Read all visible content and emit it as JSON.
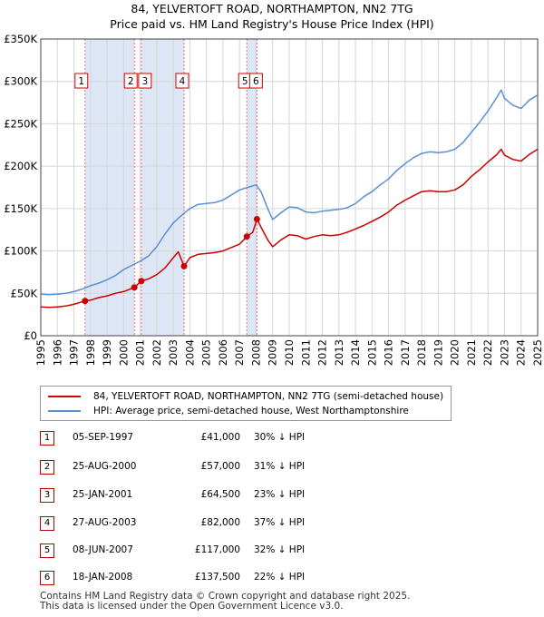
{
  "header": {
    "title": "84, YELVERTOFT ROAD, NORTHAMPTON, NN2 7TG",
    "subtitle": "Price paid vs. HM Land Registry's House Price Index (HPI)"
  },
  "legend": {
    "property_label": "84, YELVERTOFT ROAD, NORTHAMPTON, NN2 7TG (semi-detached house)",
    "hpi_label": "HPI: Average price, semi-detached house, West Northamptonshire"
  },
  "colors": {
    "property": "#cc0000",
    "hpi": "#5b8fd4",
    "shade": "#dce6f5",
    "marker_border": "#cc0000"
  },
  "chart_data": {
    "type": "line",
    "title": "84, YELVERTOFT ROAD, NORTHAMPTON, NN2 7TG",
    "xlim": [
      1995,
      2025
    ],
    "ylim": [
      0,
      350000
    ],
    "yticks": [
      0,
      50000,
      100000,
      150000,
      200000,
      250000,
      300000,
      350000
    ],
    "ytick_labels": [
      "£0",
      "£50K",
      "£100K",
      "£150K",
      "£200K",
      "£250K",
      "£300K",
      "£350K"
    ],
    "xticks": [
      1995,
      1996,
      1997,
      1998,
      1999,
      2000,
      2001,
      2002,
      2003,
      2004,
      2005,
      2006,
      2007,
      2008,
      2009,
      2010,
      2011,
      2012,
      2013,
      2014,
      2015,
      2016,
      2017,
      2018,
      2019,
      2020,
      2021,
      2022,
      2023,
      2024,
      2025
    ],
    "shaded_ranges": [
      [
        1997.68,
        2000.65
      ],
      [
        2001.07,
        2003.65
      ],
      [
        2007.44,
        2008.05
      ]
    ],
    "series": [
      {
        "name": "HPI: Average price, semi-detached house, West Northamptonshire",
        "x": [
          1995,
          1995.5,
          1996,
          1996.5,
          1997,
          1997.5,
          1998,
          1998.5,
          1999,
          1999.5,
          2000,
          2000.5,
          2001,
          2001.5,
          2002,
          2002.5,
          2003,
          2003.5,
          2004,
          2004.5,
          2005,
          2005.5,
          2006,
          2006.5,
          2007,
          2007.5,
          2008,
          2008.3,
          2008.7,
          2009,
          2009.5,
          2010,
          2010.5,
          2011,
          2011.5,
          2012,
          2012.5,
          2013,
          2013.5,
          2014,
          2014.5,
          2015,
          2015.5,
          2016,
          2016.5,
          2017,
          2017.5,
          2018,
          2018.5,
          2019,
          2019.5,
          2020,
          2020.5,
          2021,
          2021.5,
          2022,
          2022.5,
          2022.8,
          2023,
          2023.5,
          2024,
          2024.5,
          2025
        ],
        "values": [
          49000,
          48500,
          49000,
          50000,
          52000,
          55000,
          59000,
          62000,
          66000,
          71000,
          78000,
          83000,
          88000,
          94000,
          105000,
          120000,
          133000,
          142000,
          150000,
          155000,
          156000,
          157000,
          160000,
          166000,
          172000,
          175000,
          178000,
          170000,
          150000,
          137000,
          145000,
          152000,
          151000,
          146000,
          145000,
          147000,
          148000,
          149000,
          151000,
          156000,
          164000,
          170000,
          178000,
          185000,
          195000,
          203000,
          210000,
          215000,
          217000,
          216000,
          217000,
          220000,
          228000,
          240000,
          252000,
          265000,
          280000,
          290000,
          280000,
          272000,
          268000,
          278000,
          284000
        ]
      },
      {
        "name": "84, YELVERTOFT ROAD, NORTHAMPTON, NN2 7TG (semi-detached house)",
        "x": [
          1995,
          1995.5,
          1996,
          1996.5,
          1997,
          1997.67,
          1998,
          1998.5,
          1999,
          1999.5,
          2000,
          2000.65,
          2001.07,
          2001.5,
          2002,
          2002.5,
          2003,
          2003.3,
          2003.65,
          2004,
          2004.5,
          2005,
          2005.5,
          2006,
          2006.5,
          2007,
          2007.44,
          2007.8,
          2008.05,
          2008.3,
          2008.7,
          2009,
          2009.5,
          2010,
          2010.5,
          2011,
          2011.5,
          2012,
          2012.5,
          2013,
          2013.5,
          2014,
          2014.5,
          2015,
          2015.5,
          2016,
          2016.5,
          2017,
          2017.5,
          2018,
          2018.5,
          2019,
          2019.5,
          2020,
          2020.5,
          2021,
          2021.5,
          2022,
          2022.5,
          2022.8,
          2023,
          2023.5,
          2024,
          2024.5,
          2025
        ],
        "values": [
          34000,
          33500,
          34000,
          35000,
          37000,
          41000,
          42000,
          45000,
          47000,
          50000,
          52000,
          57000,
          64500,
          67000,
          72000,
          80000,
          92000,
          99000,
          82000,
          92000,
          96000,
          97000,
          98000,
          100000,
          104000,
          108000,
          117000,
          122000,
          137500,
          128000,
          113000,
          105000,
          113000,
          119000,
          118000,
          114000,
          117000,
          119000,
          118000,
          119000,
          122000,
          126000,
          130000,
          135000,
          140000,
          146000,
          154000,
          160000,
          165000,
          170000,
          171000,
          170000,
          170000,
          172000,
          178000,
          188000,
          196000,
          205000,
          213000,
          220000,
          213000,
          208000,
          206000,
          214000,
          220000
        ]
      }
    ],
    "sales": [
      {
        "n": "1",
        "year": 1997.67,
        "price": 41000
      },
      {
        "n": "2",
        "year": 2000.65,
        "price": 57000
      },
      {
        "n": "3",
        "year": 2001.07,
        "price": 64500
      },
      {
        "n": "4",
        "year": 2003.65,
        "price": 82000
      },
      {
        "n": "5",
        "year": 2007.44,
        "price": 117000
      },
      {
        "n": "6",
        "year": 2008.05,
        "price": 137500
      }
    ]
  },
  "sales_table": [
    {
      "n": "1",
      "date": "05-SEP-1997",
      "price": "£41,000",
      "hpi": "30% ↓ HPI"
    },
    {
      "n": "2",
      "date": "25-AUG-2000",
      "price": "£57,000",
      "hpi": "31% ↓ HPI"
    },
    {
      "n": "3",
      "date": "25-JAN-2001",
      "price": "£64,500",
      "hpi": "23% ↓ HPI"
    },
    {
      "n": "4",
      "date": "27-AUG-2003",
      "price": "£82,000",
      "hpi": "37% ↓ HPI"
    },
    {
      "n": "5",
      "date": "08-JUN-2007",
      "price": "£117,000",
      "hpi": "32% ↓ HPI"
    },
    {
      "n": "6",
      "date": "18-JAN-2008",
      "price": "£137,500",
      "hpi": "22% ↓ HPI"
    }
  ],
  "footer": {
    "line1": "Contains HM Land Registry data © Crown copyright and database right 2025.",
    "line2": "This data is licensed under the Open Government Licence v3.0."
  }
}
